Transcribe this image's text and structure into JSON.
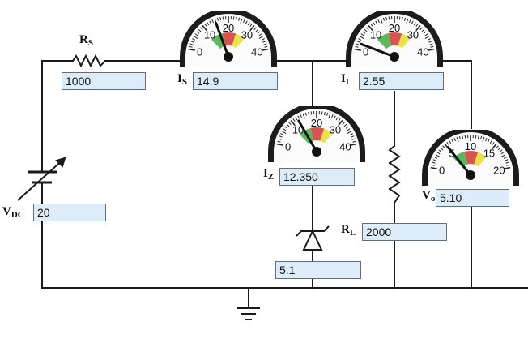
{
  "circuit": {
    "source": {
      "label": "V",
      "sub": "DC",
      "value": "20"
    },
    "series_resistor": {
      "label": "R",
      "sub": "S",
      "value": "1000"
    },
    "load_resistor": {
      "label": "R",
      "sub": "L",
      "value": "2000"
    },
    "zener": {
      "value": "5.1"
    }
  },
  "meters": [
    {
      "id": "is",
      "label": "I",
      "sub": "S",
      "value": "14.9",
      "ticks": [
        "0",
        "10",
        "20",
        "30",
        "40"
      ],
      "max": 40,
      "reading": 14.9
    },
    {
      "id": "il",
      "label": "I",
      "sub": "L",
      "value": "2.55",
      "ticks": [
        "0",
        "10",
        "20",
        "30",
        "40"
      ],
      "max": 40,
      "reading": 2.55
    },
    {
      "id": "iz",
      "label": "I",
      "sub": "Z",
      "value": "12.350",
      "ticks": [
        "0",
        "10",
        "20",
        "30",
        "40"
      ],
      "max": 40,
      "reading": 12.35
    },
    {
      "id": "vo",
      "label": "V",
      "sub": "o",
      "value": "5.10",
      "ticks": [
        "0",
        "5",
        "10",
        "15",
        "20"
      ],
      "max": 20,
      "reading": 5.1
    }
  ],
  "colors": {
    "wire": "#1a1a1a",
    "field_bg": "#deecf9",
    "field_border": "#5a6f86",
    "zone_green": "#5cb85c",
    "zone_red": "#d9534f",
    "zone_yellow": "#e9e24a"
  }
}
